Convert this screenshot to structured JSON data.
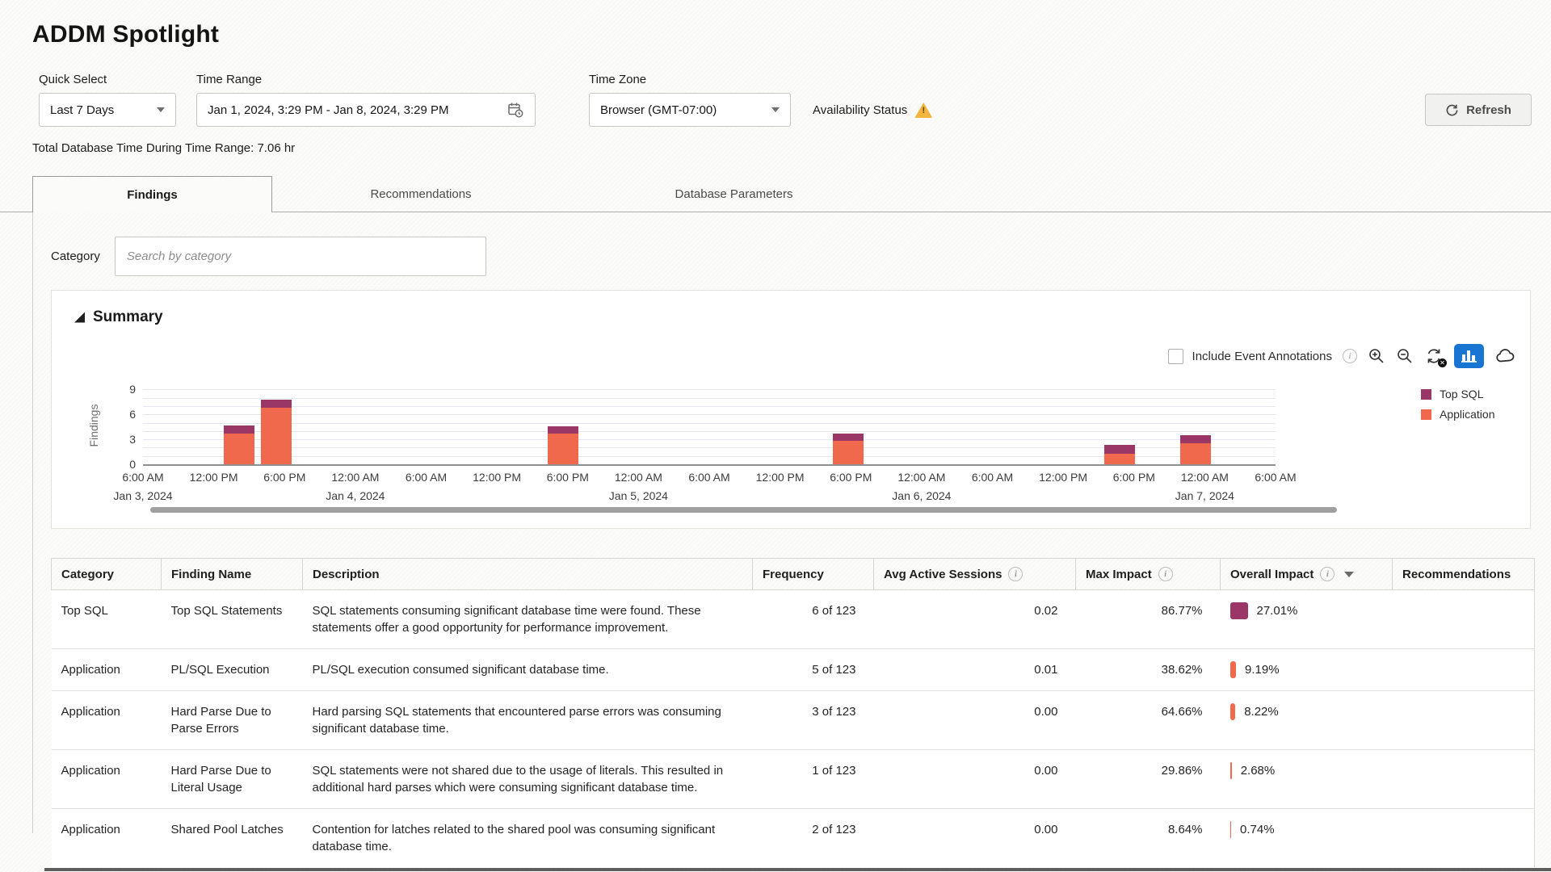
{
  "page": {
    "title": "ADDM Spotlight"
  },
  "filters": {
    "quick_select": {
      "label": "Quick Select",
      "value": "Last 7 Days"
    },
    "time_range": {
      "label": "Time Range",
      "value": "Jan 1, 2024, 3:29 PM - Jan 8, 2024, 3:29 PM"
    },
    "time_zone": {
      "label": "Time Zone",
      "value": "Browser (GMT-07:00)"
    },
    "availability_status_label": "Availability Status",
    "refresh_label": "Refresh"
  },
  "summary_line": "Total Database Time During Time Range: 7.06 hr",
  "tabs": [
    {
      "label": "Findings",
      "active": true
    },
    {
      "label": "Recommendations",
      "active": false
    },
    {
      "label": "Database Parameters",
      "active": false
    }
  ],
  "category_filter": {
    "label": "Category",
    "placeholder": "Search by category"
  },
  "summary_panel": {
    "title": "Summary",
    "include_annotations_label": "Include Event Annotations",
    "checkbox_checked": false,
    "toolbar_icons": [
      "info",
      "zoom-in",
      "zoom-out",
      "reset",
      "bar-chart-active",
      "cloud"
    ]
  },
  "chart_data": {
    "type": "bar",
    "stacked": true,
    "title": "",
    "xlabel": "",
    "ylabel": "Findings",
    "yticks": [
      0,
      3,
      6,
      9
    ],
    "ylim": [
      0,
      9.4
    ],
    "grid": "horizontal, every 1 unit",
    "x_ticks": [
      "6:00 AM",
      "12:00 PM",
      "6:00 PM",
      "12:00 AM",
      "6:00 AM",
      "12:00 PM",
      "6:00 PM",
      "12:00 AM",
      "6:00 AM",
      "12:00 PM",
      "6:00 PM",
      "12:00 AM",
      "6:00 AM",
      "12:00 PM",
      "6:00 PM",
      "12:00 AM",
      "6:00 AM"
    ],
    "x_day_labels": [
      {
        "tick": 0,
        "label": "Jan 3, 2024"
      },
      {
        "tick": 3,
        "label": "Jan 4, 2024"
      },
      {
        "tick": 7,
        "label": "Jan 5, 2024"
      },
      {
        "tick": 11,
        "label": "Jan 6, 2024"
      },
      {
        "tick": 15,
        "label": "Jan 7, 2024"
      }
    ],
    "series": [
      {
        "name": "Application",
        "color": "#F0694C"
      },
      {
        "name": "Top SQL",
        "color": "#9A3766"
      }
    ],
    "legend": {
      "position": "right",
      "order": [
        "Top SQL",
        "Application"
      ]
    },
    "bars": [
      {
        "time": "Jan 3, 2024 ~2:00 PM",
        "x_frac": 0.085,
        "Application": 3.7,
        "Top SQL": 1.0
      },
      {
        "time": "Jan 3, 2024 ~5:00 PM",
        "x_frac": 0.118,
        "Application": 6.8,
        "Top SQL": 1.0
      },
      {
        "time": "Jan 4, 2024 ~5:00 PM",
        "x_frac": 0.371,
        "Application": 3.7,
        "Top SQL": 0.9
      },
      {
        "time": "Jan 5, 2024 ~5:00 PM",
        "x_frac": 0.623,
        "Application": 2.8,
        "Top SQL": 0.9
      },
      {
        "time": "Jan 6, 2024 ~4:30 PM",
        "x_frac": 0.862,
        "Application": 1.3,
        "Top SQL": 1.0
      },
      {
        "time": "Jan 6, 2024 ~11:00 PM",
        "x_frac": 0.929,
        "Application": 2.5,
        "Top SQL": 1.0
      }
    ]
  },
  "table": {
    "columns": [
      {
        "label": "Category"
      },
      {
        "label": "Finding Name"
      },
      {
        "label": "Description"
      },
      {
        "label": "Frequency"
      },
      {
        "label": "Avg Active Sessions",
        "info": true
      },
      {
        "label": "Max Impact",
        "info": true
      },
      {
        "label": "Overall Impact",
        "info": true,
        "sort": "desc"
      },
      {
        "label": "Recommendations"
      }
    ],
    "rows": [
      {
        "category": "Top SQL",
        "finding": "Top SQL Statements",
        "description": "SQL statements consuming significant database time were found. These statements offer a good opportunity for performance improvement.",
        "frequency": "6 of 123",
        "avg_active_sessions": "0.02",
        "max_impact": "86.77%",
        "overall_impact": "27.01%",
        "overall_value": 27.01,
        "bar_color": "#9A3766"
      },
      {
        "category": "Application",
        "finding": "PL/SQL Execution",
        "description": "PL/SQL execution consumed significant database time.",
        "frequency": "5 of 123",
        "avg_active_sessions": "0.01",
        "max_impact": "38.62%",
        "overall_impact": "9.19%",
        "overall_value": 9.19,
        "bar_color": "#F0694C"
      },
      {
        "category": "Application",
        "finding": "Hard Parse Due to Parse Errors",
        "description": "Hard parsing SQL statements that encountered parse errors was consuming significant database time.",
        "frequency": "3 of 123",
        "avg_active_sessions": "0.00",
        "max_impact": "64.66%",
        "overall_impact": "8.22%",
        "overall_value": 8.22,
        "bar_color": "#F0694C"
      },
      {
        "category": "Application",
        "finding": "Hard Parse Due to Literal Usage",
        "description": "SQL statements were not shared due to the usage of literals. This resulted in additional hard parses which were consuming significant database time.",
        "frequency": "1 of 123",
        "avg_active_sessions": "0.00",
        "max_impact": "29.86%",
        "overall_impact": "2.68%",
        "overall_value": 2.68,
        "bar_color": "#F0694C"
      },
      {
        "category": "Application",
        "finding": "Shared Pool Latches",
        "description": "Contention for latches related to the shared pool was consuming significant database time.",
        "frequency": "2 of 123",
        "avg_active_sessions": "0.00",
        "max_impact": "8.64%",
        "overall_impact": "0.74%",
        "overall_value": 0.74,
        "bar_color": "#F0694C"
      }
    ]
  }
}
